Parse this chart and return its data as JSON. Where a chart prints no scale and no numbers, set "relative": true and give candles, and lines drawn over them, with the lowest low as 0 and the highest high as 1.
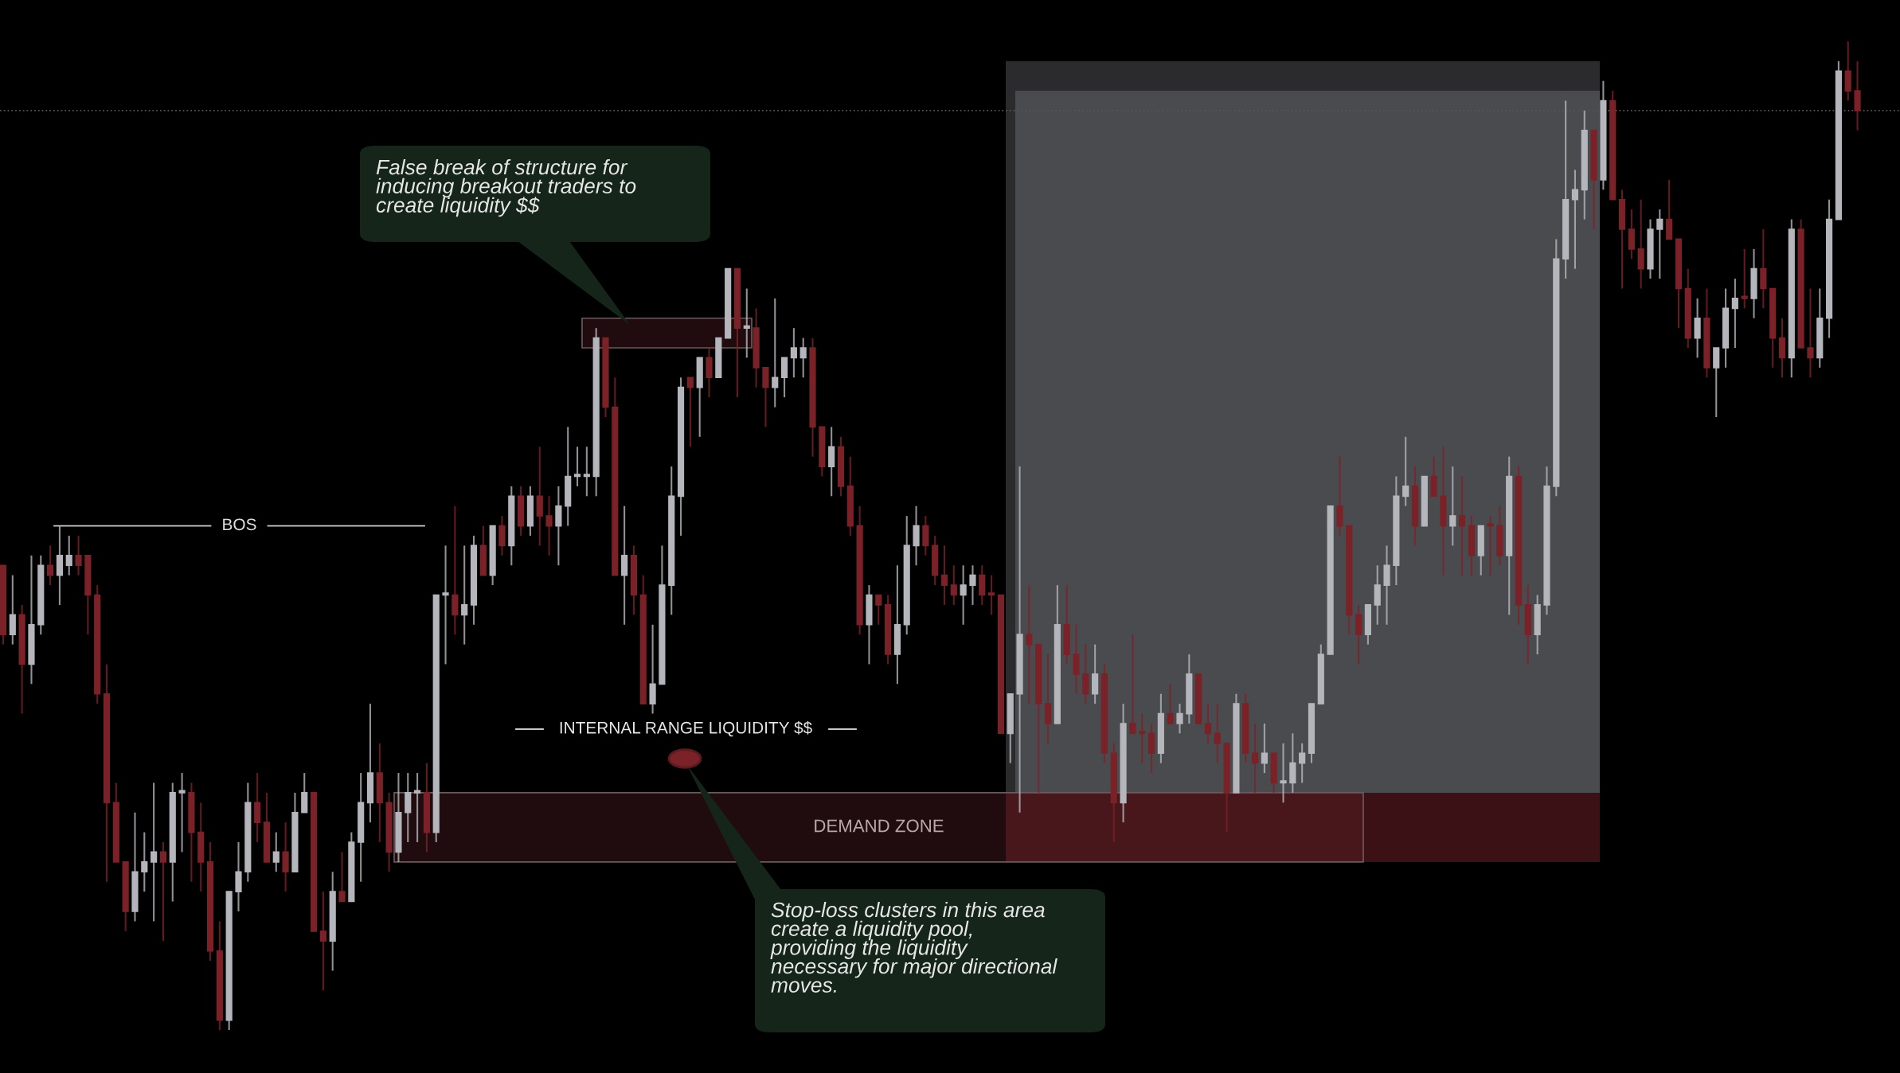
{
  "chart_data": {
    "type": "candlestick",
    "relative": true,
    "categories": [
      null,
      null,
      null,
      null,
      null,
      null,
      null,
      null,
      null,
      null,
      null,
      null,
      null,
      null,
      null,
      null,
      null,
      null,
      null,
      null,
      null,
      null,
      null,
      null,
      null,
      null,
      null,
      null,
      null,
      null,
      null,
      null,
      null,
      null,
      null,
      null,
      null,
      null,
      null,
      null,
      null,
      null,
      null,
      null,
      null,
      null,
      null,
      null,
      null,
      null,
      null,
      null,
      null,
      null,
      null,
      null,
      null,
      null,
      null,
      null,
      null,
      null,
      null,
      null,
      null,
      null,
      null,
      null,
      null,
      null,
      null,
      null,
      null,
      null,
      null,
      null,
      null,
      null,
      null,
      null,
      null,
      null,
      null,
      null,
      null,
      null,
      null,
      null,
      null,
      null,
      null,
      null,
      null,
      null,
      null,
      null,
      null,
      null,
      null,
      null,
      null,
      null,
      null,
      null,
      null,
      null,
      null,
      null,
      null,
      null,
      null,
      null,
      null,
      null,
      null,
      null,
      null,
      null,
      null,
      null,
      null,
      null,
      null,
      null,
      null,
      null,
      null,
      null,
      null,
      null,
      null,
      null,
      null,
      null,
      null,
      null,
      null,
      null,
      null,
      null,
      null,
      null,
      null,
      null,
      null,
      null,
      null,
      null,
      null,
      null,
      null,
      null,
      null,
      null,
      null,
      null,
      null,
      null,
      null,
      null,
      null,
      null,
      null,
      null,
      null,
      null,
      null,
      null,
      null,
      null,
      null,
      null,
      null,
      null,
      null,
      null,
      null,
      null,
      null,
      null,
      null,
      null,
      null,
      null,
      null,
      null,
      null,
      null,
      null,
      null,
      null,
      null,
      null,
      null,
      null,
      null,
      null,
      null
    ],
    "ohlc": [
      [
        0.47,
        0.47,
        0.39,
        0.4
      ],
      [
        0.4,
        0.46,
        0.39,
        0.42
      ],
      [
        0.42,
        0.43,
        0.32,
        0.37
      ],
      [
        0.37,
        0.48,
        0.35,
        0.41
      ],
      [
        0.41,
        0.48,
        0.4,
        0.47
      ],
      [
        0.47,
        0.49,
        0.45,
        0.46
      ],
      [
        0.46,
        0.51,
        0.43,
        0.48
      ],
      [
        0.47,
        0.5,
        0.46,
        0.48
      ],
      [
        0.48,
        0.5,
        0.46,
        0.47
      ],
      [
        0.48,
        0.48,
        0.4,
        0.44
      ],
      [
        0.44,
        0.45,
        0.33,
        0.34
      ],
      [
        0.34,
        0.37,
        0.15,
        0.23
      ],
      [
        0.23,
        0.25,
        0.17,
        0.17
      ],
      [
        0.17,
        0.17,
        0.1,
        0.12
      ],
      [
        0.12,
        0.22,
        0.11,
        0.16
      ],
      [
        0.16,
        0.2,
        0.14,
        0.17
      ],
      [
        0.17,
        0.25,
        0.11,
        0.18
      ],
      [
        0.18,
        0.19,
        0.09,
        0.17
      ],
      [
        0.17,
        0.25,
        0.13,
        0.24
      ],
      [
        0.24,
        0.26,
        0.18,
        0.24
      ],
      [
        0.24,
        0.25,
        0.15,
        0.2
      ],
      [
        0.2,
        0.23,
        0.14,
        0.17
      ],
      [
        0.17,
        0.19,
        0.07,
        0.08
      ],
      [
        0.08,
        0.11,
        0.0,
        0.01
      ],
      [
        0.01,
        0.14,
        0.0,
        0.14
      ],
      [
        0.14,
        0.19,
        0.12,
        0.16
      ],
      [
        0.16,
        0.25,
        0.15,
        0.23
      ],
      [
        0.23,
        0.26,
        0.19,
        0.21
      ],
      [
        0.21,
        0.24,
        0.17,
        0.17
      ],
      [
        0.17,
        0.2,
        0.16,
        0.18
      ],
      [
        0.18,
        0.21,
        0.14,
        0.16
      ],
      [
        0.16,
        0.24,
        0.16,
        0.22
      ],
      [
        0.22,
        0.26,
        0.22,
        0.24
      ],
      [
        0.24,
        0.24,
        0.1,
        0.1
      ],
      [
        0.1,
        0.14,
        0.04,
        0.09
      ],
      [
        0.09,
        0.16,
        0.06,
        0.14
      ],
      [
        0.14,
        0.18,
        0.13,
        0.13
      ],
      [
        0.13,
        0.2,
        0.13,
        0.19
      ],
      [
        0.19,
        0.26,
        0.15,
        0.23
      ],
      [
        0.23,
        0.33,
        0.21,
        0.26
      ],
      [
        0.26,
        0.29,
        0.19,
        0.23
      ],
      [
        0.23,
        0.24,
        0.16,
        0.18
      ],
      [
        0.18,
        0.26,
        0.17,
        0.22
      ],
      [
        0.22,
        0.26,
        0.19,
        0.24
      ],
      [
        0.24,
        0.26,
        0.19,
        0.24
      ],
      [
        0.24,
        0.27,
        0.18,
        0.2
      ],
      [
        0.2,
        0.44,
        0.19,
        0.44
      ],
      [
        0.44,
        0.49,
        0.37,
        0.44
      ],
      [
        0.44,
        0.53,
        0.4,
        0.42
      ],
      [
        0.42,
        0.49,
        0.39,
        0.43
      ],
      [
        0.43,
        0.5,
        0.41,
        0.49
      ],
      [
        0.49,
        0.51,
        0.46,
        0.46
      ],
      [
        0.46,
        0.51,
        0.45,
        0.51
      ],
      [
        0.51,
        0.52,
        0.48,
        0.49
      ],
      [
        0.49,
        0.55,
        0.47,
        0.54
      ],
      [
        0.54,
        0.55,
        0.5,
        0.51
      ],
      [
        0.51,
        0.55,
        0.5,
        0.54
      ],
      [
        0.54,
        0.59,
        0.49,
        0.52
      ],
      [
        0.52,
        0.54,
        0.48,
        0.51
      ],
      [
        0.51,
        0.55,
        0.47,
        0.53
      ],
      [
        0.53,
        0.61,
        0.51,
        0.56
      ],
      [
        0.56,
        0.59,
        0.55,
        0.56
      ],
      [
        0.56,
        0.59,
        0.54,
        0.56
      ],
      [
        0.56,
        0.71,
        0.54,
        0.7
      ],
      [
        0.7,
        0.7,
        0.62,
        0.63
      ],
      [
        0.63,
        0.66,
        0.46,
        0.46
      ],
      [
        0.46,
        0.53,
        0.41,
        0.48
      ],
      [
        0.48,
        0.49,
        0.42,
        0.44
      ],
      [
        0.44,
        0.46,
        0.33,
        0.33
      ],
      [
        0.33,
        0.41,
        0.32,
        0.35
      ],
      [
        0.35,
        0.49,
        0.35,
        0.45
      ],
      [
        0.45,
        0.57,
        0.42,
        0.54
      ],
      [
        0.54,
        0.66,
        0.5,
        0.65
      ],
      [
        0.66,
        0.66,
        0.59,
        0.65
      ],
      [
        0.65,
        0.68,
        0.6,
        0.68
      ],
      [
        0.68,
        0.69,
        0.64,
        0.66
      ],
      [
        0.66,
        0.7,
        0.66,
        0.7
      ],
      [
        0.7,
        0.77,
        0.7,
        0.77
      ],
      [
        0.77,
        0.77,
        0.64,
        0.71
      ],
      [
        0.71,
        0.75,
        0.68,
        0.71
      ],
      [
        0.71,
        0.73,
        0.65,
        0.67
      ],
      [
        0.67,
        0.67,
        0.61,
        0.65
      ],
      [
        0.65,
        0.74,
        0.63,
        0.66
      ],
      [
        0.66,
        0.68,
        0.64,
        0.68
      ],
      [
        0.68,
        0.71,
        0.66,
        0.69
      ],
      [
        0.68,
        0.7,
        0.66,
        0.69
      ],
      [
        0.69,
        0.7,
        0.58,
        0.61
      ],
      [
        0.61,
        0.61,
        0.56,
        0.57
      ],
      [
        0.57,
        0.61,
        0.54,
        0.59
      ],
      [
        0.59,
        0.6,
        0.54,
        0.55
      ],
      [
        0.55,
        0.58,
        0.5,
        0.51
      ],
      [
        0.51,
        0.53,
        0.4,
        0.41
      ],
      [
        0.41,
        0.45,
        0.37,
        0.44
      ],
      [
        0.44,
        0.44,
        0.41,
        0.43
      ],
      [
        0.43,
        0.44,
        0.37,
        0.38
      ],
      [
        0.38,
        0.47,
        0.35,
        0.41
      ],
      [
        0.41,
        0.52,
        0.4,
        0.49
      ],
      [
        0.49,
        0.53,
        0.47,
        0.51
      ],
      [
        0.51,
        0.52,
        0.48,
        0.49
      ],
      [
        0.49,
        0.5,
        0.45,
        0.46
      ],
      [
        0.46,
        0.49,
        0.43,
        0.45
      ],
      [
        0.45,
        0.47,
        0.43,
        0.44
      ],
      [
        0.44,
        0.47,
        0.41,
        0.45
      ],
      [
        0.45,
        0.47,
        0.43,
        0.46
      ],
      [
        0.46,
        0.47,
        0.43,
        0.44
      ],
      [
        0.44,
        0.46,
        0.42,
        0.44
      ],
      [
        0.44,
        0.44,
        0.3,
        0.3
      ],
      [
        0.3,
        0.34,
        0.27,
        0.34
      ],
      [
        0.34,
        0.57,
        0.22,
        0.4
      ],
      [
        0.4,
        0.45,
        0.33,
        0.39
      ],
      [
        0.39,
        0.39,
        0.24,
        0.33
      ],
      [
        0.33,
        0.38,
        0.29,
        0.31
      ],
      [
        0.31,
        0.45,
        0.31,
        0.41
      ],
      [
        0.41,
        0.45,
        0.37,
        0.38
      ],
      [
        0.38,
        0.41,
        0.34,
        0.36
      ],
      [
        0.36,
        0.39,
        0.33,
        0.34
      ],
      [
        0.34,
        0.39,
        0.33,
        0.36
      ],
      [
        0.36,
        0.37,
        0.27,
        0.28
      ],
      [
        0.28,
        0.29,
        0.19,
        0.23
      ],
      [
        0.23,
        0.33,
        0.21,
        0.31
      ],
      [
        0.31,
        0.4,
        0.3,
        0.3
      ],
      [
        0.3,
        0.32,
        0.27,
        0.3
      ],
      [
        0.3,
        0.31,
        0.26,
        0.28
      ],
      [
        0.28,
        0.34,
        0.27,
        0.32
      ],
      [
        0.32,
        0.35,
        0.31,
        0.31
      ],
      [
        0.31,
        0.33,
        0.3,
        0.32
      ],
      [
        0.32,
        0.38,
        0.31,
        0.36
      ],
      [
        0.36,
        0.36,
        0.31,
        0.31
      ],
      [
        0.31,
        0.33,
        0.29,
        0.3
      ],
      [
        0.3,
        0.33,
        0.27,
        0.29
      ],
      [
        0.29,
        0.29,
        0.2,
        0.24
      ],
      [
        0.24,
        0.34,
        0.24,
        0.33
      ],
      [
        0.33,
        0.34,
        0.27,
        0.28
      ],
      [
        0.28,
        0.31,
        0.24,
        0.27
      ],
      [
        0.27,
        0.31,
        0.26,
        0.28
      ],
      [
        0.28,
        0.28,
        0.24,
        0.25
      ],
      [
        0.25,
        0.29,
        0.23,
        0.25
      ],
      [
        0.25,
        0.3,
        0.24,
        0.27
      ],
      [
        0.27,
        0.29,
        0.25,
        0.28
      ],
      [
        0.28,
        0.33,
        0.27,
        0.33
      ],
      [
        0.33,
        0.39,
        0.33,
        0.38
      ],
      [
        0.38,
        0.53,
        0.38,
        0.53
      ],
      [
        0.53,
        0.58,
        0.5,
        0.51
      ],
      [
        0.51,
        0.51,
        0.4,
        0.42
      ],
      [
        0.42,
        0.43,
        0.37,
        0.4
      ],
      [
        0.4,
        0.43,
        0.39,
        0.43
      ],
      [
        0.43,
        0.47,
        0.41,
        0.45
      ],
      [
        0.45,
        0.49,
        0.41,
        0.47
      ],
      [
        0.47,
        0.56,
        0.45,
        0.54
      ],
      [
        0.54,
        0.6,
        0.53,
        0.55
      ],
      [
        0.55,
        0.57,
        0.49,
        0.51
      ],
      [
        0.51,
        0.56,
        0.51,
        0.56
      ],
      [
        0.56,
        0.58,
        0.54,
        0.54
      ],
      [
        0.54,
        0.59,
        0.46,
        0.51
      ],
      [
        0.51,
        0.57,
        0.49,
        0.52
      ],
      [
        0.52,
        0.56,
        0.46,
        0.51
      ],
      [
        0.51,
        0.52,
        0.46,
        0.48
      ],
      [
        0.48,
        0.51,
        0.46,
        0.51
      ],
      [
        0.51,
        0.52,
        0.46,
        0.51
      ],
      [
        0.51,
        0.53,
        0.47,
        0.48
      ],
      [
        0.48,
        0.58,
        0.42,
        0.56
      ],
      [
        0.56,
        0.57,
        0.41,
        0.43
      ],
      [
        0.43,
        0.45,
        0.37,
        0.4
      ],
      [
        0.4,
        0.44,
        0.38,
        0.43
      ],
      [
        0.43,
        0.57,
        0.42,
        0.55
      ],
      [
        0.55,
        0.8,
        0.54,
        0.78
      ],
      [
        0.78,
        0.94,
        0.76,
        0.84
      ],
      [
        0.84,
        0.87,
        0.77,
        0.85
      ],
      [
        0.85,
        0.93,
        0.82,
        0.91
      ],
      [
        0.91,
        0.91,
        0.81,
        0.86
      ],
      [
        0.86,
        0.96,
        0.85,
        0.94
      ],
      [
        0.94,
        0.95,
        0.84,
        0.84
      ],
      [
        0.84,
        0.85,
        0.75,
        0.81
      ],
      [
        0.81,
        0.83,
        0.78,
        0.79
      ],
      [
        0.79,
        0.84,
        0.75,
        0.77
      ],
      [
        0.77,
        0.82,
        0.76,
        0.81
      ],
      [
        0.81,
        0.83,
        0.76,
        0.82
      ],
      [
        0.82,
        0.86,
        0.8,
        0.8
      ],
      [
        0.8,
        0.8,
        0.71,
        0.75
      ],
      [
        0.75,
        0.77,
        0.69,
        0.7
      ],
      [
        0.7,
        0.74,
        0.68,
        0.72
      ],
      [
        0.72,
        0.75,
        0.66,
        0.67
      ],
      [
        0.67,
        0.69,
        0.62,
        0.69
      ],
      [
        0.69,
        0.75,
        0.67,
        0.73
      ],
      [
        0.73,
        0.76,
        0.69,
        0.74
      ],
      [
        0.74,
        0.79,
        0.73,
        0.74
      ],
      [
        0.74,
        0.79,
        0.72,
        0.77
      ],
      [
        0.77,
        0.81,
        0.73,
        0.75
      ],
      [
        0.75,
        0.75,
        0.67,
        0.7
      ],
      [
        0.7,
        0.72,
        0.66,
        0.68
      ],
      [
        0.68,
        0.82,
        0.66,
        0.81
      ],
      [
        0.81,
        0.82,
        0.69,
        0.69
      ],
      [
        0.69,
        0.75,
        0.66,
        0.68
      ],
      [
        0.68,
        0.75,
        0.67,
        0.72
      ],
      [
        0.72,
        0.84,
        0.7,
        0.82
      ],
      [
        0.82,
        0.98,
        0.82,
        0.97
      ],
      [
        0.97,
        1.0,
        0.94,
        0.95
      ],
      [
        0.95,
        0.98,
        0.91,
        0.93
      ]
    ],
    "colors": [
      "#7a2228",
      "#b4b6bc",
      "#7a2228",
      "#b4b6bc",
      "#b4b6bc",
      "#7a2228",
      "#b4b6bc",
      "#b4b6bc",
      "#7a2228",
      "#7a2228",
      "#7a2228",
      "#7a2228",
      "#7a2228",
      "#7a2228",
      "#b4b6bc",
      "#b4b6bc",
      "#b4b6bc",
      "#7a2228",
      "#b4b6bc",
      "#b4b6bc",
      "#7a2228",
      "#7a2228",
      "#7a2228",
      "#7a2228",
      "#b4b6bc",
      "#b4b6bc",
      "#b4b6bc",
      "#7a2228",
      "#7a2228",
      "#b4b6bc",
      "#7a2228",
      "#b4b6bc",
      "#b4b6bc",
      "#7a2228",
      "#7a2228",
      "#b4b6bc",
      "#7a2228",
      "#b4b6bc",
      "#b4b6bc",
      "#b4b6bc",
      "#7a2228",
      "#7a2228",
      "#b4b6bc",
      "#b4b6bc",
      "#b4b6bc",
      "#7a2228",
      "#b4b6bc",
      "#b4b6bc",
      "#7a2228",
      "#b4b6bc",
      "#b4b6bc",
      "#7a2228",
      "#b4b6bc",
      "#7a2228",
      "#b4b6bc",
      "#7a2228",
      "#b4b6bc",
      "#7a2228",
      "#7a2228",
      "#b4b6bc",
      "#b4b6bc",
      "#b4b6bc",
      "#b4b6bc",
      "#b4b6bc",
      "#7a2228",
      "#7a2228",
      "#b4b6bc",
      "#7a2228",
      "#7a2228",
      "#b4b6bc",
      "#b4b6bc",
      "#b4b6bc",
      "#b4b6bc",
      "#7a2228",
      "#b4b6bc",
      "#7a2228",
      "#b4b6bc",
      "#b4b6bc",
      "#7a2228",
      "#b4b6bc",
      "#7a2228",
      "#7a2228",
      "#b4b6bc",
      "#b4b6bc",
      "#b4b6bc",
      "#b4b6bc",
      "#7a2228",
      "#7a2228",
      "#b4b6bc",
      "#7a2228",
      "#7a2228",
      "#7a2228",
      "#b4b6bc",
      "#7a2228",
      "#7a2228",
      "#b4b6bc",
      "#b4b6bc",
      "#b4b6bc",
      "#7a2228",
      "#7a2228",
      "#7a2228",
      "#7a2228",
      "#b4b6bc",
      "#b4b6bc",
      "#7a2228",
      "#7a2228",
      "#7a2228",
      "#b4b6bc",
      "#b4b6bc",
      "#7a2228",
      "#7a2228",
      "#7a2228",
      "#b4b6bc",
      "#7a2228",
      "#7a2228",
      "#7a2228",
      "#b4b6bc",
      "#7a2228",
      "#7a2228",
      "#b4b6bc",
      "#7a2228",
      "#7a2228",
      "#7a2228",
      "#b4b6bc",
      "#7a2228",
      "#b4b6bc",
      "#b4b6bc",
      "#7a2228",
      "#7a2228",
      "#7a2228",
      "#7a2228",
      "#b4b6bc",
      "#7a2228",
      "#7a2228",
      "#b4b6bc",
      "#7a2228",
      "#b4b6bc",
      "#b4b6bc",
      "#b4b6bc",
      "#b4b6bc",
      "#b4b6bc",
      "#b4b6bc",
      "#7a2228",
      "#7a2228",
      "#7a2228",
      "#b4b6bc",
      "#b4b6bc",
      "#b4b6bc",
      "#b4b6bc",
      "#b4b6bc",
      "#7a2228",
      "#b4b6bc",
      "#7a2228",
      "#7a2228",
      "#b4b6bc",
      "#7a2228",
      "#7a2228",
      "#b4b6bc",
      "#7a2228",
      "#7a2228",
      "#b4b6bc",
      "#7a2228",
      "#7a2228",
      "#b4b6bc",
      "#b4b6bc",
      "#b4b6bc",
      "#b4b6bc",
      "#b4b6bc",
      "#b4b6bc",
      "#7a2228",
      "#b4b6bc",
      "#7a2228",
      "#7a2228",
      "#7a2228",
      "#7a2228",
      "#b4b6bc",
      "#b4b6bc",
      "#7a2228",
      "#7a2228",
      "#7a2228",
      "#b4b6bc",
      "#7a2228",
      "#b4b6bc",
      "#b4b6bc",
      "#b4b6bc",
      "#7a2228",
      "#b4b6bc",
      "#7a2228",
      "#7a2228",
      "#7a2228",
      "#b4b6bc",
      "#7a2228",
      "#7a2228",
      "#b4b6bc",
      "#b4b6bc",
      "#b4b6bc",
      "#7a2228",
      "#7a2228"
    ],
    "ref_lines": [
      {
        "axis": "y",
        "value": 0.93,
        "color": "#555555",
        "line_style": "dotted"
      },
      {
        "axis": "y",
        "value": 0.51,
        "label": "BOS",
        "color": "#c8c8c8",
        "line_style": "solid"
      }
    ],
    "bands": [
      {
        "axis": "y",
        "from": 0.17,
        "to": 0.98,
        "color": "#2b2b2d"
      },
      {
        "axis": "y",
        "from": 0.24,
        "to": 0.95,
        "color": "#4a4b4f"
      },
      {
        "axis": "y",
        "from": 0.17,
        "to": 0.24,
        "color": "#3c1115"
      },
      {
        "axis": "y",
        "from": 0.17,
        "to": 0.24,
        "label": "DEMAND ZONE",
        "color": "#5c2228"
      },
      {
        "axis": "y",
        "from": 0.69,
        "to": 0.72,
        "color": "#5c2228"
      }
    ],
    "annotations": [
      "False break of structure for\ninducing breakout traders to\ncreate liquidity $$",
      "INTERNAL RANGE LIQUIDITY $$",
      "Stop-loss clusters in this area\ncreate a liquidity pool,\nproviding the liquidity\nnecessary for major directional\nmoves."
    ]
  }
}
